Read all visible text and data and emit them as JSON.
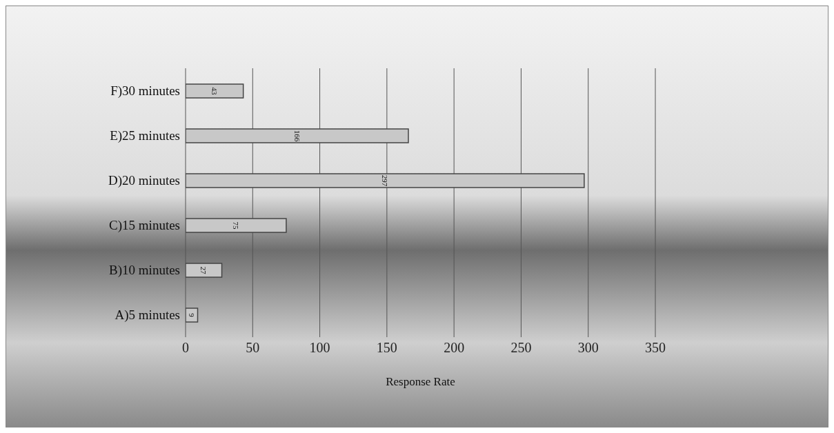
{
  "chart_data": {
    "type": "bar",
    "orientation": "horizontal",
    "xlabel": "Response Rate",
    "categories": [
      "F)30 minutes",
      "E)25 minutes",
      "D)20 minutes",
      "C)15 minutes",
      "B)10 minutes",
      "A)5 minutes"
    ],
    "values": [
      43,
      166,
      297,
      75,
      27,
      9
    ],
    "color": "#c8c8c8",
    "xlim": [
      0,
      350
    ],
    "xticks": [
      0,
      50,
      100,
      150,
      200,
      250,
      300,
      350
    ],
    "grid": "x",
    "data_labels": true
  }
}
